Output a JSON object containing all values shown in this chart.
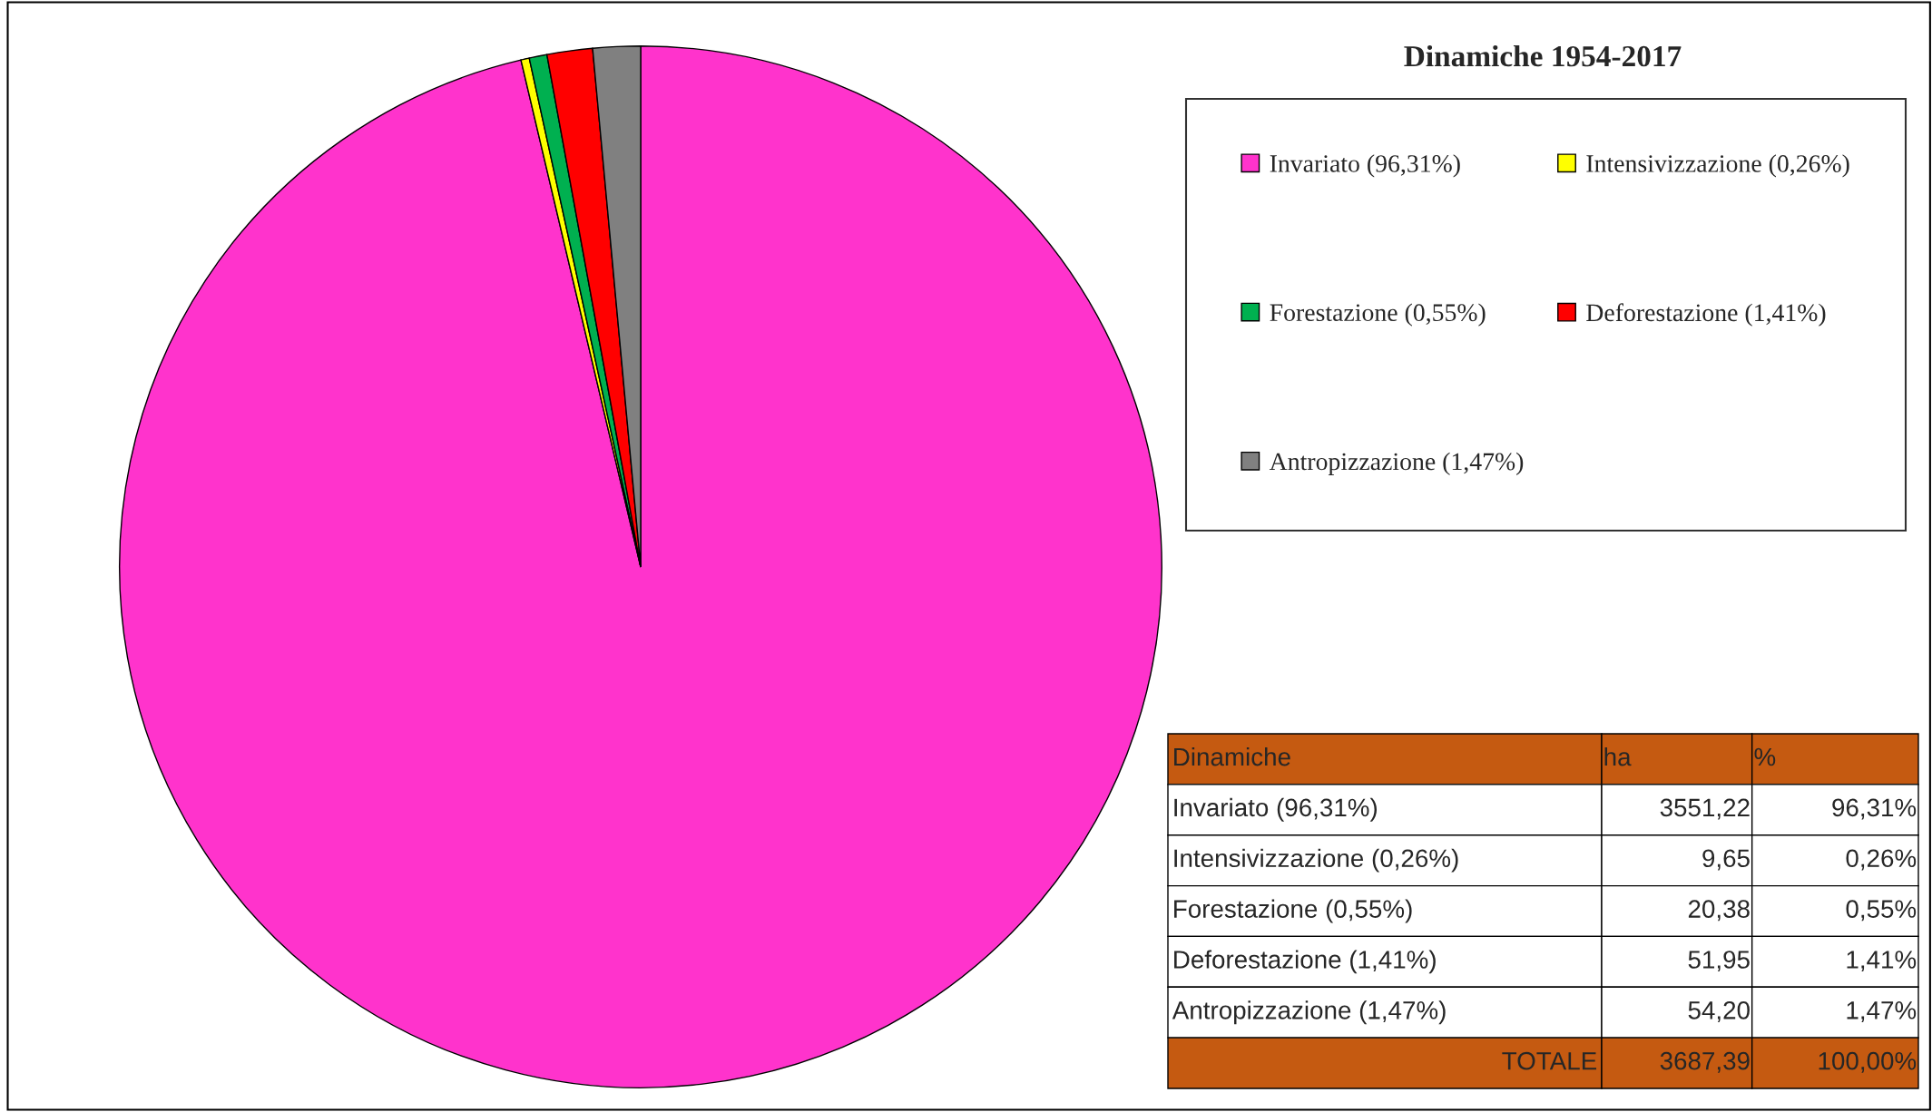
{
  "chart_data": {
    "type": "pie",
    "title": "Dinamiche 1954-2017",
    "categories": [
      "Invariato (96,31%)",
      "Intensivizzazione (0,26%)",
      "Forestazione (0,55%)",
      "Deforestazione (1,41%)",
      "Antropizzazione (1,47%)"
    ],
    "values": [
      96.31,
      0.26,
      0.55,
      1.41,
      1.47
    ],
    "colors": [
      "#ff33cc",
      "#ffff00",
      "#00b050",
      "#ff0000",
      "#808080"
    ],
    "legend": "right",
    "annotations": [
      "Dinamiche",
      "ha",
      "%",
      "Invariato (96,31%)",
      "3551,22",
      "96,31%",
      "Intensivizzazione (0,26%)",
      "9,65",
      "0,26%",
      "Forestazione (0,55%)",
      "20,38",
      "0,55%",
      "Deforestazione (1,41%)",
      "51,95",
      "1,41%",
      "Antropizzazione (1,47%)",
      "54,20",
      "1,47%",
      "TOTALE",
      "3687,39",
      "100,00%"
    ]
  }
}
